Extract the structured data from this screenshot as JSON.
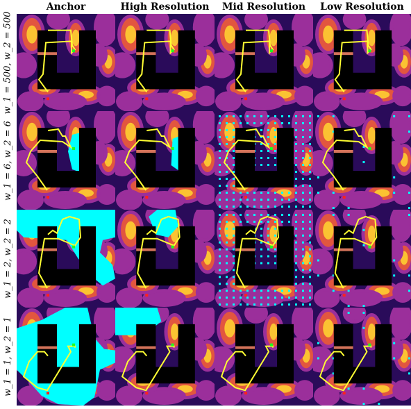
{
  "columns": [
    "Anchor",
    "High Resolution",
    "Mid Resolution",
    "Low Resolution"
  ],
  "rows": [
    "w_1 = 500, w_2 = 500",
    "w_1 = 6, w_2 = 6",
    "w_1 = 2, w_2 = 2",
    "w_1 = 1, w_2 = 1"
  ],
  "colors": {
    "field_dark": "#2a0b5a",
    "field_mid": "#9b2f9b",
    "field_warm": "#e2563f",
    "field_hot": "#fbc332",
    "obstacle": "#000000",
    "path": "#ffff33",
    "explored": "#00ffff",
    "start": "#ff2020",
    "goal": "#20ff20",
    "bar": "#d4735a"
  }
}
